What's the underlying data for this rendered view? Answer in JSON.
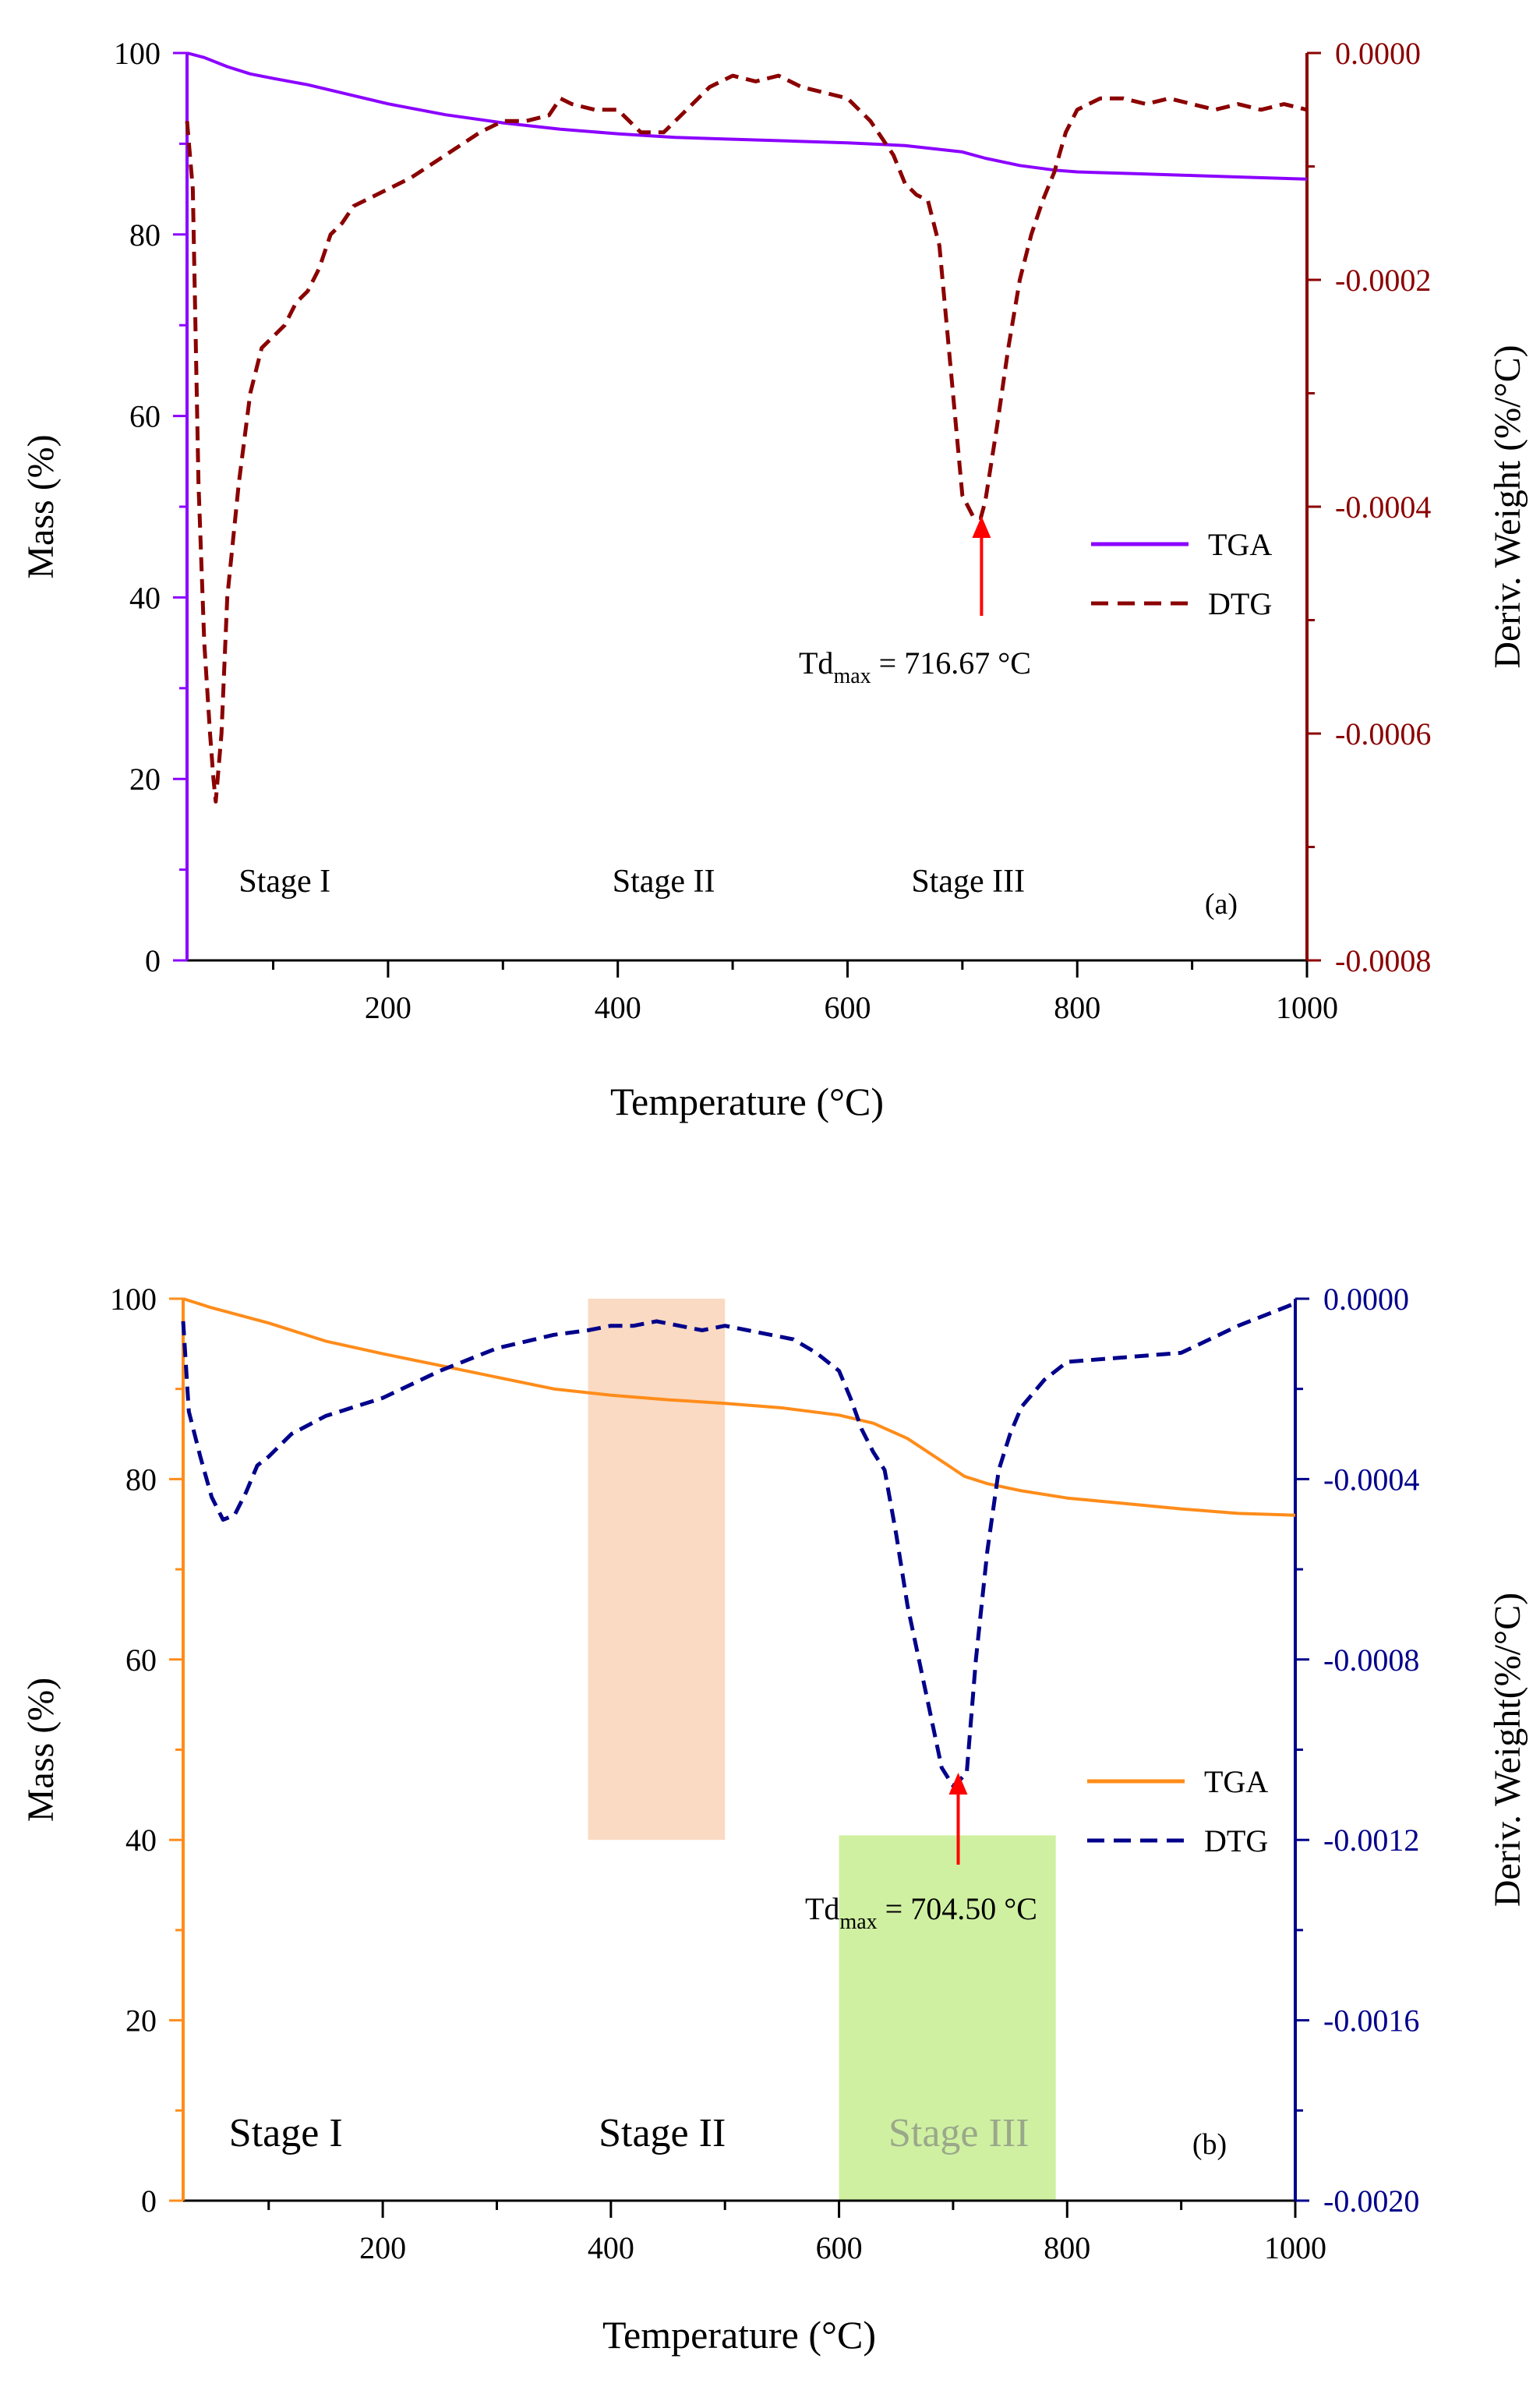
{
  "chart_data": [
    {
      "id": "a",
      "type": "line",
      "panel_label": "(a)",
      "title": "",
      "xlabel": "Temperature (°C)",
      "ylabel_left": "Mass (%)",
      "ylabel_right": "Deriv. Weight (%/°C)",
      "xlim": [
        25,
        1000
      ],
      "ylim_left": [
        0,
        100
      ],
      "ylim_right": [
        -0.0008,
        0.0
      ],
      "x_ticks": [
        200,
        400,
        600,
        800,
        1000
      ],
      "y_left_ticks": [
        0,
        20,
        40,
        60,
        80,
        100
      ],
      "y_right_ticks": [
        -0.0008,
        -0.0006,
        -0.0004,
        -0.0002,
        0.0
      ],
      "y_right_tick_labels": [
        "-0.0008",
        "-0.0006",
        "-0.0004",
        "-0.0002",
        "0.0000"
      ],
      "colors": {
        "tga": "#8B00FF",
        "dtg": "#8B0000",
        "left_axis": "#8B00FF",
        "right_axis": "#8B0000",
        "annotation": "#FF0000"
      },
      "legend": {
        "position": "center-right",
        "entries": [
          "TGA",
          "DTG"
        ]
      },
      "annotation": {
        "label_main": "Td",
        "label_sub": "max",
        "label_rest": " = 716.67 °C",
        "x": 716.67
      },
      "stage_labels": [
        {
          "text": "Stage I",
          "x": 110
        },
        {
          "text": "Stage II",
          "x": 440
        },
        {
          "text": "Stage III",
          "x": 705
        }
      ],
      "shaded_regions": [],
      "series": [
        {
          "name": "TGA",
          "axis": "left",
          "style": "solid",
          "x": [
            25,
            40,
            60,
            80,
            100,
            130,
            160,
            200,
            250,
            300,
            350,
            400,
            450,
            500,
            550,
            600,
            650,
            700,
            720,
            750,
            780,
            800,
            850,
            900,
            950,
            1000
          ],
          "y": [
            100.0,
            99.5,
            98.5,
            97.7,
            97.2,
            96.5,
            95.6,
            94.4,
            93.2,
            92.3,
            91.6,
            91.1,
            90.7,
            90.5,
            90.3,
            90.1,
            89.8,
            89.1,
            88.4,
            87.6,
            87.1,
            86.9,
            86.7,
            86.5,
            86.3,
            86.1
          ]
        },
        {
          "name": "DTG",
          "axis": "right",
          "style": "dashed",
          "x": [
            25,
            30,
            35,
            40,
            45,
            48,
            50,
            55,
            60,
            70,
            80,
            90,
            100,
            110,
            120,
            130,
            140,
            150,
            160,
            170,
            180,
            200,
            220,
            250,
            280,
            300,
            320,
            340,
            350,
            360,
            380,
            400,
            420,
            440,
            460,
            480,
            500,
            520,
            540,
            560,
            580,
            600,
            620,
            640,
            650,
            660,
            670,
            680,
            690,
            700,
            710,
            716,
            720,
            730,
            740,
            750,
            760,
            770,
            780,
            790,
            800,
            820,
            840,
            860,
            880,
            900,
            920,
            940,
            960,
            980,
            1000
          ],
          "y": [
            -6e-05,
            -0.00012,
            -0.00038,
            -0.00052,
            -0.0006,
            -0.00064,
            -0.00066,
            -0.0006,
            -0.00048,
            -0.00038,
            -0.0003,
            -0.00026,
            -0.00025,
            -0.00024,
            -0.00022,
            -0.00021,
            -0.00019,
            -0.00016,
            -0.00015,
            -0.000135,
            -0.00013,
            -0.00012,
            -0.00011,
            -9e-05,
            -7e-05,
            -6e-05,
            -6e-05,
            -5.5e-05,
            -4e-05,
            -4.5e-05,
            -5e-05,
            -5e-05,
            -7e-05,
            -7e-05,
            -5e-05,
            -3e-05,
            -2e-05,
            -2.5e-05,
            -2e-05,
            -3e-05,
            -3.5e-05,
            -4e-05,
            -6e-05,
            -9e-05,
            -0.000115,
            -0.000125,
            -0.00013,
            -0.00017,
            -0.00028,
            -0.00039,
            -0.00041,
            -0.00041,
            -0.000395,
            -0.00033,
            -0.00026,
            -0.0002,
            -0.00016,
            -0.00013,
            -0.000105,
            -7e-05,
            -5e-05,
            -4e-05,
            -4e-05,
            -4.5e-05,
            -4e-05,
            -4.5e-05,
            -5e-05,
            -4.5e-05,
            -5e-05,
            -4.5e-05,
            -5e-05
          ]
        }
      ]
    },
    {
      "id": "b",
      "type": "line",
      "panel_label": "(b)",
      "title": "",
      "xlabel": "Temperature (°C)",
      "ylabel_left": "Mass (%)",
      "ylabel_right": "Deriv. Weight(%/°C)",
      "xlim": [
        25,
        1000
      ],
      "ylim_left": [
        0,
        100
      ],
      "ylim_right": [
        -0.002,
        0.0
      ],
      "x_ticks": [
        200,
        400,
        600,
        800,
        1000
      ],
      "y_left_ticks": [
        0,
        20,
        40,
        60,
        80,
        100
      ],
      "y_right_ticks": [
        -0.002,
        -0.0016,
        -0.0012,
        -0.0008,
        -0.0004,
        0.0
      ],
      "y_right_tick_labels": [
        "-0.0020",
        "-0.0016",
        "-0.0012",
        "-0.0008",
        "-0.0004",
        "0.0000"
      ],
      "colors": {
        "tga": "#FF8C1A",
        "dtg": "#00008B",
        "left_axis": "#FF8C1A",
        "right_axis": "#00008B",
        "annotation": "#FF0000",
        "stage2_fill": "#F8CBA8",
        "stage3_fill": "#C3EC8A"
      },
      "legend": {
        "position": "center-right",
        "entries": [
          "TGA",
          "DTG"
        ]
      },
      "annotation": {
        "label_main": "Td",
        "label_sub": "max",
        "label_rest": " = 704.50 °C",
        "x": 704.5
      },
      "stage_labels": [
        {
          "text": "Stage I",
          "x": 115
        },
        {
          "text": "Stage II",
          "x": 445
        },
        {
          "text": "Stage III",
          "x": 705
        }
      ],
      "shaded_regions": [
        {
          "name": "stage-2-region",
          "x0": 380,
          "x1": 500,
          "y0": 40,
          "y1": 100,
          "opacity": 0.7
        },
        {
          "name": "stage-3-region",
          "x0": 600,
          "x1": 790,
          "y0": 0,
          "y1": 40.5,
          "opacity": 0.8
        }
      ],
      "series": [
        {
          "name": "TGA",
          "axis": "left",
          "style": "solid",
          "x": [
            25,
            50,
            100,
            150,
            200,
            250,
            300,
            350,
            400,
            450,
            500,
            550,
            600,
            630,
            660,
            690,
            710,
            730,
            760,
            800,
            850,
            900,
            950,
            1000
          ],
          "y": [
            100.0,
            99.0,
            97.3,
            95.3,
            93.9,
            92.6,
            91.3,
            90.0,
            89.3,
            88.8,
            88.4,
            87.9,
            87.1,
            86.2,
            84.5,
            82.0,
            80.3,
            79.5,
            78.7,
            77.9,
            77.3,
            76.7,
            76.2,
            76.0
          ]
        },
        {
          "name": "DTG",
          "axis": "right",
          "style": "dashed",
          "x": [
            25,
            30,
            40,
            50,
            60,
            70,
            80,
            90,
            100,
            120,
            150,
            200,
            250,
            300,
            350,
            380,
            400,
            420,
            440,
            460,
            480,
            500,
            520,
            540,
            560,
            580,
            600,
            610,
            620,
            630,
            640,
            650,
            660,
            680,
            690,
            700,
            705,
            712,
            720,
            730,
            740,
            750,
            760,
            780,
            800,
            850,
            900,
            950,
            980,
            1000
          ],
          "y": [
            -5e-05,
            -0.00025,
            -0.00035,
            -0.00044,
            -0.00049,
            -0.00048,
            -0.00043,
            -0.00037,
            -0.00035,
            -0.0003,
            -0.00026,
            -0.00022,
            -0.00016,
            -0.00011,
            -8e-05,
            -7e-05,
            -6e-05,
            -6e-05,
            -5e-05,
            -6e-05,
            -7e-05,
            -6e-05,
            -7e-05,
            -8e-05,
            -9e-05,
            -0.00012,
            -0.00016,
            -0.00022,
            -0.00029,
            -0.00034,
            -0.00038,
            -0.00052,
            -0.00068,
            -0.00092,
            -0.00104,
            -0.00108,
            -0.00107,
            -0.00105,
            -0.0008,
            -0.00056,
            -0.00038,
            -0.0003,
            -0.00024,
            -0.00018,
            -0.00014,
            -0.00013,
            -0.00012,
            -6e-05,
            -3e-05,
            -1e-05
          ]
        }
      ]
    }
  ]
}
